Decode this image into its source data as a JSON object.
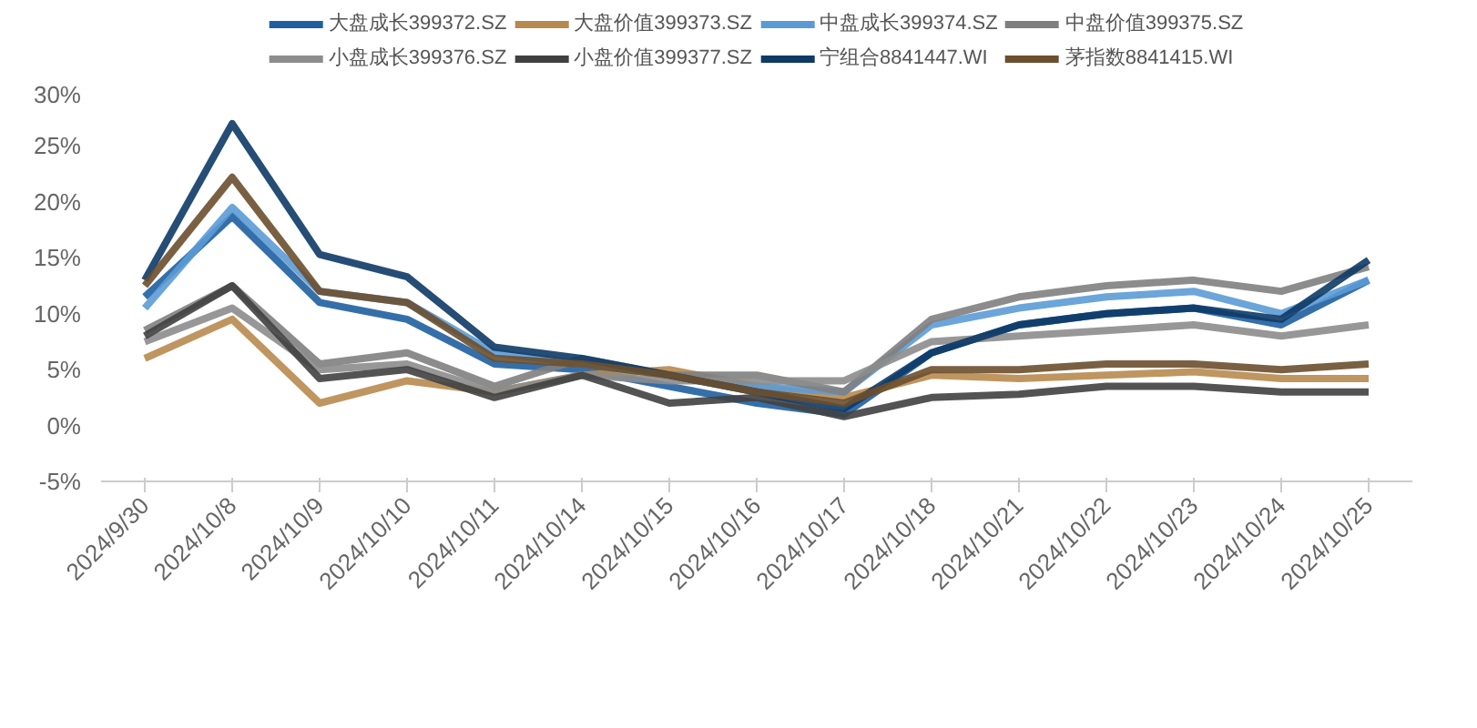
{
  "chart_data": {
    "type": "line",
    "categories": [
      "2024/9/30",
      "2024/10/8",
      "2024/10/9",
      "2024/10/10",
      "2024/10/11",
      "2024/10/14",
      "2024/10/15",
      "2024/10/16",
      "2024/10/17",
      "2024/10/18",
      "2024/10/21",
      "2024/10/22",
      "2024/10/23",
      "2024/10/24",
      "2024/10/25"
    ],
    "ylim": [
      -5,
      30
    ],
    "yticks": [
      {
        "value": -5,
        "label": "-5%"
      },
      {
        "value": 0,
        "label": "0%"
      },
      {
        "value": 5,
        "label": "5%"
      },
      {
        "value": 10,
        "label": "10%"
      },
      {
        "value": 15,
        "label": "15%"
      },
      {
        "value": 20,
        "label": "20%"
      },
      {
        "value": 25,
        "label": "25%"
      },
      {
        "value": 30,
        "label": "30%"
      }
    ],
    "grid": false,
    "legend": "top",
    "marker": "none",
    "line_style": "solid",
    "series": [
      {
        "name": "大盘成长399372.SZ",
        "color": "#1f5fa0",
        "values": [
          11.5,
          18.7,
          11,
          9.5,
          5.5,
          5,
          3.5,
          2,
          1,
          6.5,
          9,
          10,
          10.5,
          9,
          13
        ]
      },
      {
        "name": "大盘价值399373.SZ",
        "color": "#b8894f",
        "values": [
          6,
          9.5,
          2,
          4,
          3,
          4.5,
          5,
          3.5,
          2.5,
          4.5,
          4.2,
          4.5,
          4.8,
          4.2,
          4.2
        ]
      },
      {
        "name": "中盘成长399374.SZ",
        "color": "#5b9bd5",
        "values": [
          10.5,
          19.5,
          12,
          11,
          6.5,
          5.5,
          4.5,
          3.5,
          3,
          9,
          10.5,
          11.5,
          12,
          10,
          13
        ]
      },
      {
        "name": "中盘价值399375.SZ",
        "color": "#7f7f7f",
        "values": [
          8.5,
          12.5,
          5.5,
          6.5,
          3.5,
          6,
          4.5,
          4.5,
          3,
          9.5,
          11.5,
          12.5,
          13,
          12,
          14.2
        ]
      },
      {
        "name": "小盘成长399376.SZ",
        "color": "#8c8c8c",
        "values": [
          7.5,
          10.5,
          5,
          5.5,
          3,
          4.5,
          4,
          4,
          4,
          7.5,
          8,
          8.5,
          9,
          8,
          9
        ]
      },
      {
        "name": "小盘价值399377.SZ",
        "color": "#404040",
        "values": [
          8,
          12.5,
          4.2,
          5,
          2.5,
          4.5,
          2,
          2.5,
          0.8,
          2.5,
          2.8,
          3.5,
          3.5,
          3,
          3
        ]
      },
      {
        "name": "宁组合8841447.WI",
        "color": "#0d3a66",
        "values": [
          13,
          27,
          15.3,
          13.3,
          7,
          6,
          4.5,
          3,
          1.5,
          6.5,
          9,
          10,
          10.5,
          9.5,
          14.8
        ]
      },
      {
        "name": "茅指数8841415.WI",
        "color": "#6b4f2e",
        "values": [
          12.5,
          22.2,
          12,
          11,
          6,
          5.5,
          4.5,
          3,
          2,
          5,
          5,
          5.5,
          5.5,
          5,
          5.5
        ]
      }
    ]
  }
}
